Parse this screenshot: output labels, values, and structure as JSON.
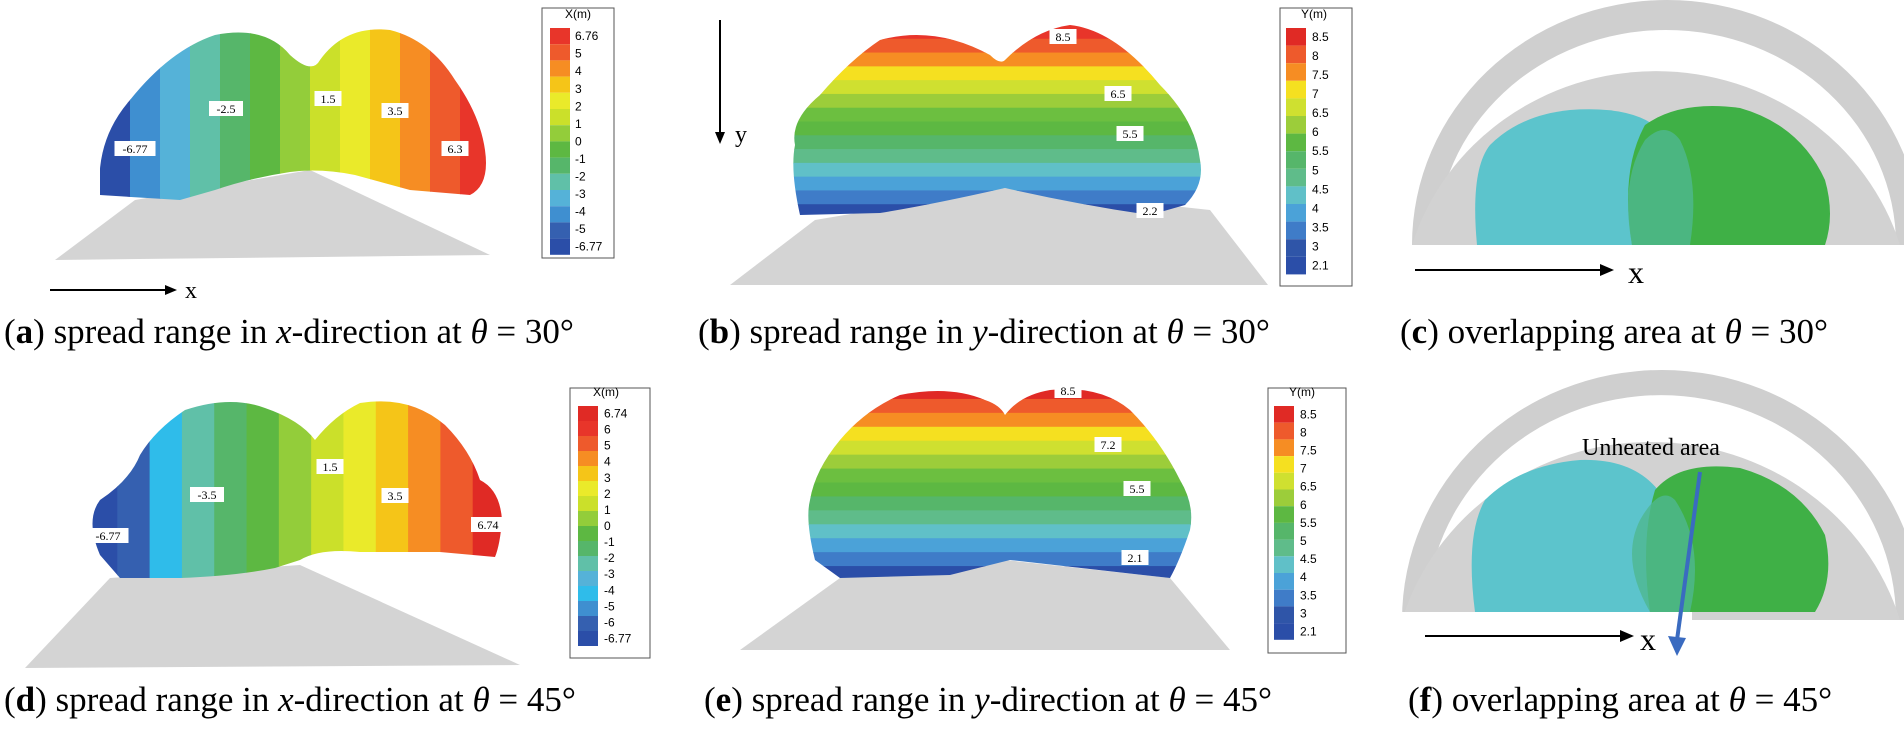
{
  "panels": [
    {
      "id": "a",
      "letter": "a",
      "caption": {
        "pre": "spread range in ",
        "var": "x",
        "post": "-direction at ",
        "theta": "θ",
        "eq": " = 30°"
      },
      "axis_label": "x",
      "legend": {
        "title": "X(m)",
        "labels": [
          "6.76",
          "5",
          "4",
          "3",
          "2",
          "1",
          "0",
          "-1",
          "-2",
          "-3",
          "-4",
          "-5",
          "-6.77"
        ],
        "colors": [
          "#e8352a",
          "#ee5a2c",
          "#f68d23",
          "#f5c518",
          "#eaea2a",
          "#cbe02a",
          "#93cd3a",
          "#5db842",
          "#56b66a",
          "#60c0a8",
          "#55b2d8",
          "#3f8fd0",
          "#3560b0",
          "#2b4ea8"
        ]
      },
      "bands": [
        "#2b4ea8",
        "#3f8fd0",
        "#55b2d8",
        "#60c0a8",
        "#56b66a",
        "#5db842",
        "#93cd3a",
        "#cbe02a",
        "#eaea2a",
        "#f5c518",
        "#f68d23",
        "#ee5a2c",
        "#e8352a"
      ],
      "labels": [
        "-6.77",
        "-2.5",
        "1.5",
        "3.5",
        "6.3"
      ]
    },
    {
      "id": "b",
      "letter": "b",
      "caption": {
        "pre": "spread range in ",
        "var": "y",
        "post": "-direction at ",
        "theta": "θ",
        "eq": " = 30°"
      },
      "axis_label": "y",
      "legend": {
        "title": "Y(m)",
        "labels": [
          "8.5",
          "8",
          "7.5",
          "7",
          "6.5",
          "6",
          "5.5",
          "5",
          "4.5",
          "4",
          "3.5",
          "3",
          "2.1"
        ],
        "colors": [
          "#e02a25",
          "#ee5a2c",
          "#f68d23",
          "#f5e020",
          "#cfe030",
          "#9ccd3a",
          "#5db842",
          "#56b66a",
          "#5fbc8a",
          "#60c0c8",
          "#4ba2d8",
          "#3f7cc8",
          "#2f55a8",
          "#2b4ea8"
        ]
      },
      "bands": [
        "#e8352a",
        "#ee5a2c",
        "#f68d23",
        "#f5e020",
        "#cfe030",
        "#9ccd3a",
        "#6cbf40",
        "#5db842",
        "#56b66a",
        "#5fbc8a",
        "#60c0c8",
        "#4ba2d8",
        "#3f7cc8",
        "#2b4ea8"
      ],
      "labels": [
        "8.5",
        "6.5",
        "5.5",
        "2.2"
      ]
    },
    {
      "id": "c",
      "letter": "c",
      "caption": {
        "pre": "overlapping area at ",
        "var": "",
        "post": "",
        "theta": "θ",
        "eq": " = 30°"
      },
      "axis_label": "x",
      "colors": {
        "left": "#5cc4cc",
        "right": "#3fb046",
        "shell": "#cfcfcf"
      }
    },
    {
      "id": "d",
      "letter": "d",
      "caption": {
        "pre": "spread range in ",
        "var": "x",
        "post": "-direction at ",
        "theta": "θ",
        "eq": " = 45°"
      },
      "axis_label": "",
      "legend": {
        "title": "X(m)",
        "labels": [
          "6.74",
          "6",
          "5",
          "4",
          "3",
          "2",
          "1",
          "0",
          "-1",
          "-2",
          "-3",
          "-4",
          "-5",
          "-6",
          "-6.77"
        ],
        "colors": [
          "#e02a25",
          "#e8352a",
          "#ee5a2c",
          "#f68d23",
          "#f5c518",
          "#eaea2a",
          "#cbe02a",
          "#93cd3a",
          "#5db842",
          "#56b66a",
          "#60c0a8",
          "#55b2d8",
          "#2fbcea",
          "#3f8fd0",
          "#3560b0",
          "#2b4ea8"
        ]
      },
      "bands": [
        "#2b4ea8",
        "#3560b0",
        "#2fbcea",
        "#60c0a8",
        "#56b66a",
        "#5db842",
        "#93cd3a",
        "#cbe02a",
        "#eaea2a",
        "#f5c518",
        "#f68d23",
        "#ee5a2c",
        "#e02a25"
      ],
      "labels": [
        "-6.77",
        "-3.5",
        "1.5",
        "3.5",
        "6.74"
      ]
    },
    {
      "id": "e",
      "letter": "e",
      "caption": {
        "pre": "spread range in ",
        "var": "y",
        "post": "-direction at ",
        "theta": "θ",
        "eq": " = 45°"
      },
      "axis_label": "",
      "legend": {
        "title": "Y(m)",
        "labels": [
          "8.5",
          "8",
          "7.5",
          "7",
          "6.5",
          "6",
          "5.5",
          "5",
          "4.5",
          "4",
          "3.5",
          "3",
          "2.1"
        ],
        "colors": [
          "#e02a25",
          "#ee5a2c",
          "#f68d23",
          "#f5e020",
          "#cfe030",
          "#9ccd3a",
          "#5db842",
          "#56b66a",
          "#5fbc8a",
          "#60c0c8",
          "#4ba2d8",
          "#3f7cc8",
          "#2f55a8",
          "#2b4ea8"
        ]
      },
      "bands": [
        "#e02a25",
        "#ee5a2c",
        "#f68d23",
        "#f5e020",
        "#cfe030",
        "#9ccd3a",
        "#6cbf40",
        "#5db842",
        "#56b66a",
        "#5fbc8a",
        "#60c0c8",
        "#4ba2d8",
        "#3f7cc8",
        "#2b4ea8"
      ],
      "labels": [
        "8.5",
        "7.2",
        "5.5",
        "2.1"
      ]
    },
    {
      "id": "f",
      "letter": "f",
      "caption": {
        "pre": "overlapping area at ",
        "var": "",
        "post": "",
        "theta": "θ",
        "eq": " = 45°"
      },
      "axis_label": "x",
      "annotation": "Unheated area",
      "colors": {
        "left": "#5cc4cc",
        "right": "#3fb046",
        "shell": "#cfcfcf",
        "arrow": "#3a6bc0"
      }
    }
  ]
}
